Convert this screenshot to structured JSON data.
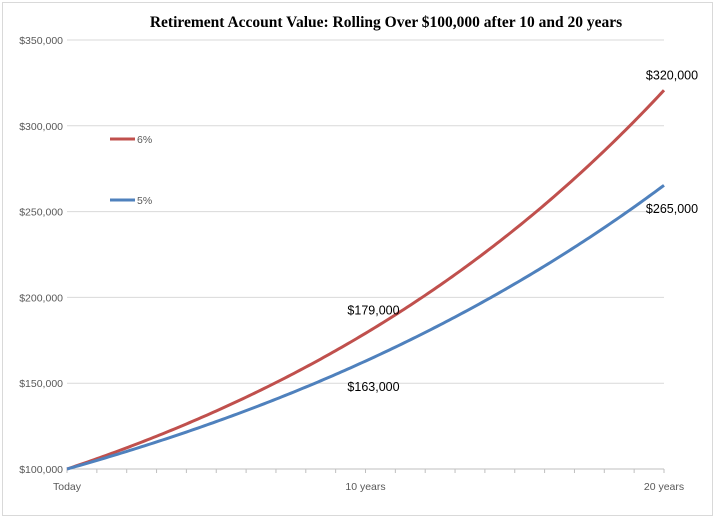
{
  "chart_data": {
    "type": "line",
    "title": "Retirement Account Value: Rolling Over $100,000 after 10 and 20 years",
    "xlabel": "",
    "ylabel": "",
    "x_ticks": [
      "Today",
      "10 years",
      "20 years"
    ],
    "x_range": [
      0,
      20
    ],
    "ylim": [
      100000,
      350000
    ],
    "y_ticks": [
      {
        "value": 100000,
        "label": "$100,000"
      },
      {
        "value": 150000,
        "label": "$150,000"
      },
      {
        "value": 200000,
        "label": "$200,000"
      },
      {
        "value": 250000,
        "label": "$250,000"
      },
      {
        "value": 300000,
        "label": "$300,000"
      },
      {
        "value": 350000,
        "label": "$350,000"
      }
    ],
    "grid": "horizontal",
    "legend_position": "left",
    "series": [
      {
        "name": "6%",
        "color": "#c0504d",
        "rate": 0.06,
        "start": 100000,
        "annotations": [
          {
            "x": 10,
            "y": 179000,
            "label": "$179,000"
          },
          {
            "x": 20,
            "y": 320000,
            "label": "$320,000"
          }
        ]
      },
      {
        "name": "5%",
        "color": "#4f81bd",
        "rate": 0.05,
        "start": 100000,
        "annotations": [
          {
            "x": 10,
            "y": 163000,
            "label": "$163,000"
          },
          {
            "x": 20,
            "y": 265000,
            "label": "$265,000"
          }
        ]
      }
    ]
  }
}
